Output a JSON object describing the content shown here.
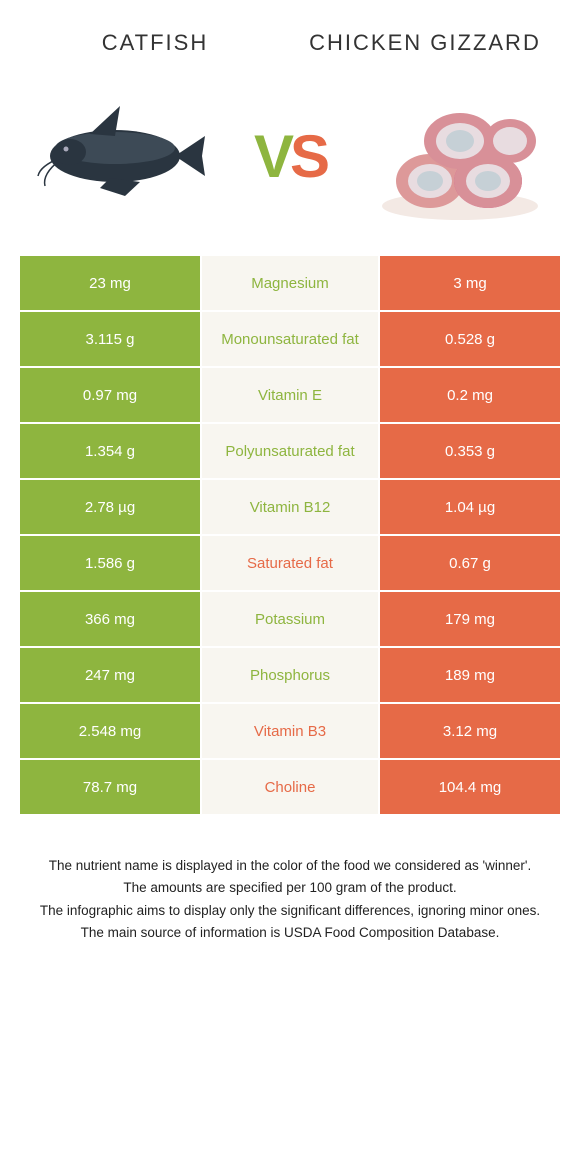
{
  "header": {
    "left_title": "Catfish",
    "right_title": "Chicken gizzard",
    "vs": "VS"
  },
  "colors": {
    "green": "#8eb53f",
    "orange": "#e66a47",
    "mid_bg": "#f8f6f0",
    "vs_v": "#8eb53f",
    "vs_s": "#e66a47"
  },
  "rows": [
    {
      "left": "23 mg",
      "mid": "Magnesium",
      "right": "3 mg",
      "winner": "left"
    },
    {
      "left": "3.115 g",
      "mid": "Monounsaturated fat",
      "right": "0.528 g",
      "winner": "left"
    },
    {
      "left": "0.97 mg",
      "mid": "Vitamin E",
      "right": "0.2 mg",
      "winner": "left"
    },
    {
      "left": "1.354 g",
      "mid": "Polyunsaturated fat",
      "right": "0.353 g",
      "winner": "left"
    },
    {
      "left": "2.78 µg",
      "mid": "Vitamin B12",
      "right": "1.04 µg",
      "winner": "left"
    },
    {
      "left": "1.586 g",
      "mid": "Saturated fat",
      "right": "0.67 g",
      "winner": "right"
    },
    {
      "left": "366 mg",
      "mid": "Potassium",
      "right": "179 mg",
      "winner": "left"
    },
    {
      "left": "247 mg",
      "mid": "Phosphorus",
      "right": "189 mg",
      "winner": "left"
    },
    {
      "left": "2.548 mg",
      "mid": "Vitamin B3",
      "right": "3.12 mg",
      "winner": "right"
    },
    {
      "left": "78.7 mg",
      "mid": "Choline",
      "right": "104.4 mg",
      "winner": "right"
    }
  ],
  "footer": {
    "l1": "The nutrient name is displayed in the color of the food we considered as 'winner'.",
    "l2": "The amounts are specified per 100 gram of the product.",
    "l3": "The infographic aims to display only the significant differences, ignoring minor ones.",
    "l4": "The main source of information is USDA Food Composition Database."
  }
}
